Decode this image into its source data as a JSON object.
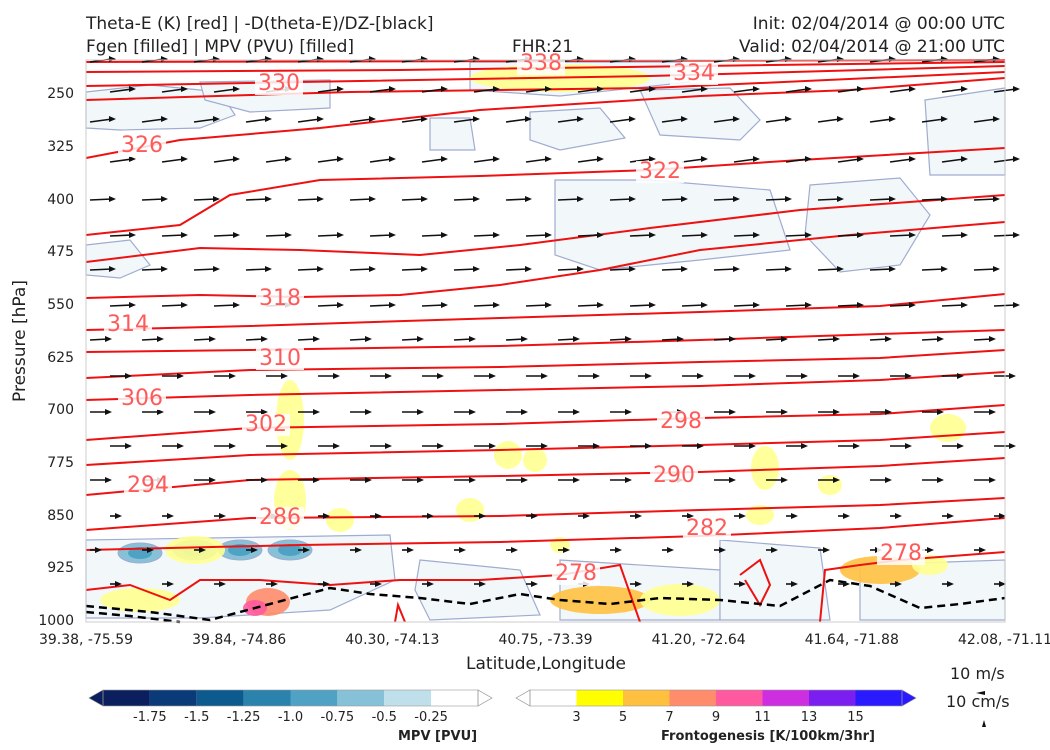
{
  "header": {
    "title_left_1": "Theta-E (K) [red] | -D(theta-E)/DZ-[black]",
    "title_left_2": "Fgen [filled] | MPV (PVU) [filled]",
    "fhr": "FHR:21",
    "init": "Init: 02/04/2014 @ 00:00 UTC",
    "valid": "Valid: 02/04/2014 @ 21:00 UTC"
  },
  "colors": {
    "theta_e": "#ee1111",
    "ddz": "#000000",
    "mpv_edge": "#a0acd0",
    "wind": "#111111",
    "label": "#ff5a5a"
  },
  "chart_data": {
    "type": "cross-section",
    "xlabel": "Latitude,Longitude",
    "ylabel": "Pressure [hPa]",
    "y_range": [
      1000,
      200
    ],
    "x_ticks": [
      "39.38, -75.59",
      "39.84, -74.86",
      "40.30, -74.13",
      "40.75, -73.39",
      "41.20, -72.64",
      "41.64, -71.88",
      "42.08, -71.11"
    ],
    "y_ticks": [
      250,
      325,
      400,
      475,
      550,
      625,
      700,
      775,
      850,
      925,
      1000
    ],
    "theta_e_contour_labels": [
      "330",
      "338",
      "334",
      "326",
      "322",
      "318",
      "314",
      "310",
      "306",
      "302",
      "298",
      "294",
      "290",
      "286",
      "282",
      "278",
      "278"
    ],
    "mpv_colorbar": {
      "label": "MPV [PVU]",
      "ticks": [
        "-1.75",
        "-1.5",
        "-1.25",
        "-1.0",
        "-0.75",
        "-0.5",
        "-0.25"
      ],
      "colors": [
        "#0b1f5e",
        "#0b3a78",
        "#0d5a8f",
        "#2a82ad",
        "#4fa2c4",
        "#86c1d8",
        "#bfe0ea",
        "#ffffff"
      ]
    },
    "fgen_colorbar": {
      "label": "Frontogenesis [K/100km/3hr]",
      "ticks": [
        "3",
        "5",
        "7",
        "9",
        "11",
        "13",
        "15"
      ],
      "colors": [
        "#ffffff",
        "#ffff00",
        "#ffc040",
        "#ff8c6a",
        "#ff5aa0",
        "#cc2ee0",
        "#7a1ff0",
        "#2a1aff"
      ]
    },
    "reference_vectors": {
      "horizontal": "10 m/s",
      "vertical": "10 cm/s"
    }
  }
}
